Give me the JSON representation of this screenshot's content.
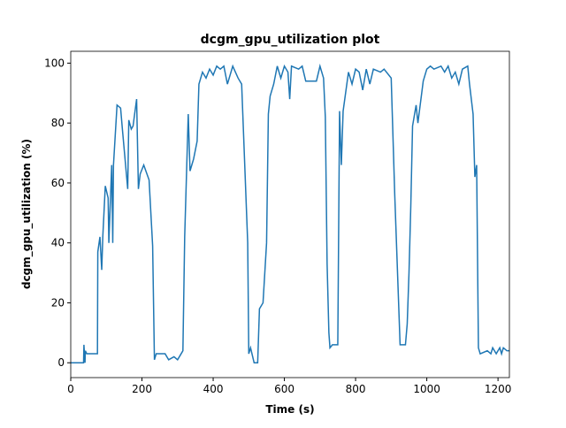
{
  "chart_data": {
    "type": "line",
    "title": "dcgm_gpu_utilization plot",
    "x_label": "Time (s)",
    "y_label": "dcgm_gpu_utilization (%)",
    "x": [
      0,
      36,
      37,
      40,
      41,
      45,
      50,
      70,
      75,
      76,
      82,
      87,
      90,
      97,
      105,
      107,
      115,
      118,
      120,
      130,
      140,
      145,
      160,
      163,
      170,
      175,
      185,
      190,
      195,
      205,
      220,
      230,
      235,
      240,
      265,
      275,
      290,
      300,
      310,
      315,
      320,
      330,
      335,
      345,
      355,
      360,
      370,
      380,
      390,
      400,
      410,
      420,
      430,
      440,
      450,
      455,
      470,
      480,
      497,
      500,
      505,
      515,
      525,
      530,
      540,
      550,
      555,
      560,
      570,
      580,
      590,
      600,
      610,
      615,
      620,
      640,
      650,
      660,
      690,
      700,
      710,
      715,
      720,
      725,
      728,
      735,
      750,
      755,
      760,
      765,
      780,
      790,
      800,
      810,
      820,
      830,
      840,
      850,
      870,
      880,
      900,
      910,
      925,
      940,
      945,
      950,
      955,
      960,
      970,
      975,
      990,
      1000,
      1010,
      1020,
      1040,
      1050,
      1060,
      1070,
      1080,
      1090,
      1100,
      1115,
      1120,
      1130,
      1135,
      1140,
      1145,
      1150,
      1170,
      1180,
      1185,
      1195,
      1205,
      1210,
      1215,
      1225,
      1232
    ],
    "series": [
      {
        "name": "dcgm_gpu_utilization",
        "color": "#1f77b4",
        "values": [
          0,
          0,
          6,
          0,
          4,
          3,
          3,
          3,
          3,
          37,
          42,
          31,
          42,
          59,
          55,
          40,
          66,
          40,
          66,
          86,
          85,
          78,
          58,
          81,
          78,
          79,
          88,
          58,
          63,
          66,
          61,
          39,
          1,
          3,
          3,
          1,
          2,
          1,
          3,
          4,
          42,
          83,
          64,
          68,
          74,
          93,
          97,
          95,
          98,
          96,
          99,
          98,
          99,
          93,
          97,
          99,
          95,
          93,
          40,
          3,
          5,
          0,
          0,
          18,
          20,
          40,
          83,
          89,
          93,
          99,
          95,
          99,
          97,
          88,
          99,
          98,
          99,
          94,
          94,
          99,
          95,
          82,
          33,
          10,
          5,
          6,
          6,
          84,
          66,
          84,
          97,
          93,
          98,
          97,
          91,
          98,
          93,
          98,
          97,
          98,
          95,
          56,
          6,
          6,
          13,
          30,
          52,
          79,
          86,
          80,
          94,
          98,
          99,
          98,
          99,
          97,
          99,
          95,
          97,
          93,
          98,
          99,
          93,
          83,
          62,
          66,
          5,
          3,
          4,
          3,
          5,
          3,
          5,
          3,
          5,
          4,
          4
        ]
      }
    ],
    "xlim": [
      0,
      1232
    ],
    "ylim": [
      -4.95,
      103.95
    ],
    "xticks": [
      0,
      200,
      400,
      600,
      800,
      1000,
      1200
    ],
    "yticks": [
      0,
      20,
      40,
      60,
      80,
      100
    ]
  }
}
